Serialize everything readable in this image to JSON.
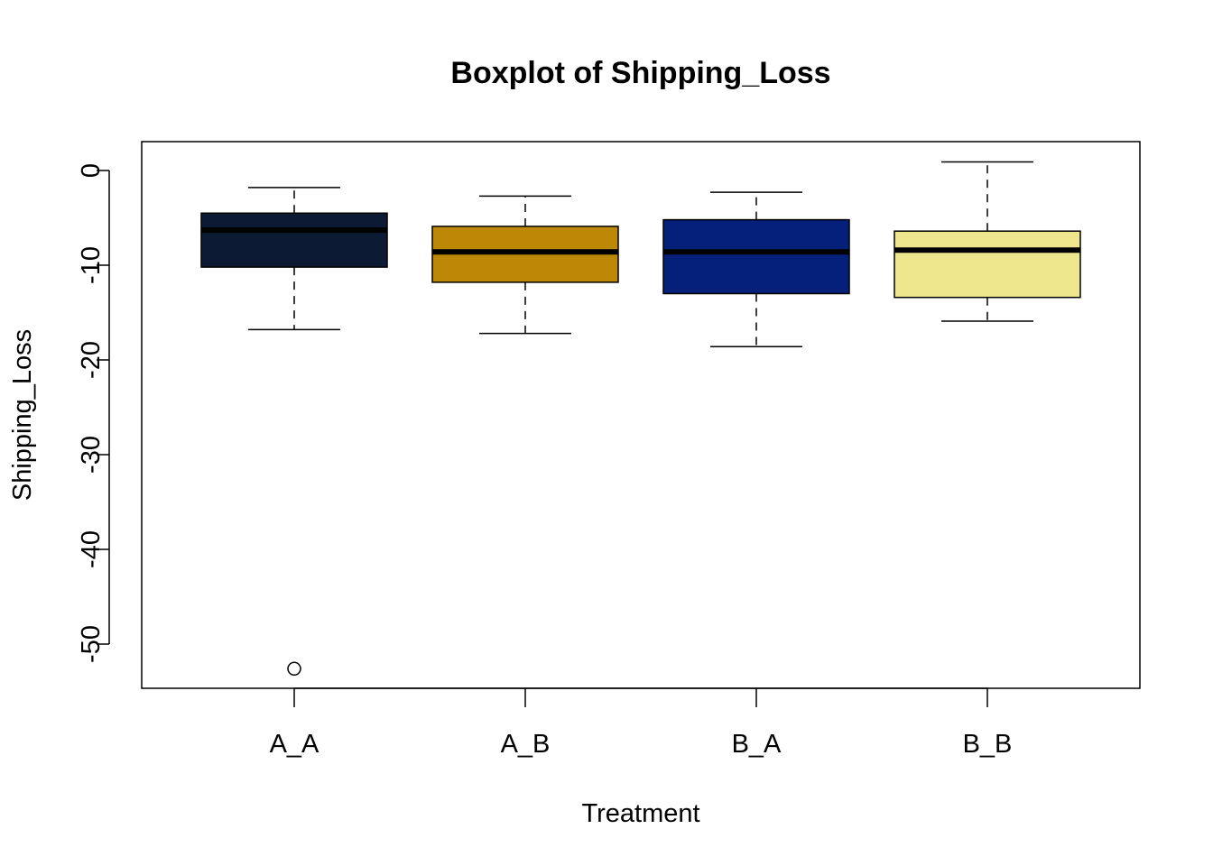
{
  "chart_data": {
    "type": "boxplot",
    "title": "Boxplot of Shipping_Loss",
    "xlabel": "Treatment",
    "ylabel": "Shipping_Loss",
    "ylim": [
      -55,
      3
    ],
    "yticks": [
      0,
      -10,
      -20,
      -30,
      -40,
      -50
    ],
    "ytick_labels": [
      "0",
      "-10",
      "-20",
      "-30",
      "-40",
      "-50"
    ],
    "grid": false,
    "categories": [
      "A_A",
      "A_B",
      "B_A",
      "B_B"
    ],
    "boxes": [
      {
        "category": "A_A",
        "whisker_low": -16.8,
        "q1": -10.2,
        "median": -6.3,
        "q3": -4.5,
        "whisker_high": -1.8,
        "outliers": [
          -52.6
        ],
        "color": "#0C1B33"
      },
      {
        "category": "A_B",
        "whisker_low": -17.2,
        "q1": -11.8,
        "median": -8.6,
        "q3": -5.9,
        "whisker_high": -2.7,
        "outliers": [],
        "color": "#BC8806"
      },
      {
        "category": "B_A",
        "whisker_low": -18.6,
        "q1": -13.0,
        "median": -8.6,
        "q3": -5.2,
        "whisker_high": -2.3,
        "outliers": [],
        "color": "#04207A"
      },
      {
        "category": "B_B",
        "whisker_low": -15.9,
        "q1": -13.4,
        "median": -8.4,
        "q3": -6.4,
        "whisker_high": 0.9,
        "outliers": [],
        "color": "#EEE68C"
      }
    ]
  }
}
